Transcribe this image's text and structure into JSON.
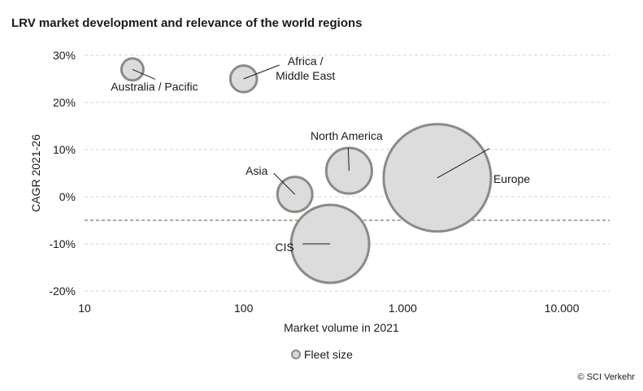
{
  "chart_data": {
    "type": "scatter",
    "title": "LRV market development and relevance of the world regions",
    "xlabel": "Market volume in 2021",
    "ylabel": "CAGR 2021-26",
    "xscale": "log",
    "xlim": [
      10,
      20000
    ],
    "ylim": [
      -20,
      30
    ],
    "x_ticks": [
      10,
      100,
      1000,
      10000
    ],
    "x_tick_labels": [
      "10",
      "100",
      "1.000",
      "10.000"
    ],
    "y_ticks": [
      30,
      20,
      10,
      0,
      -10,
      -20
    ],
    "y_tick_labels": [
      "30%",
      "20%",
      "10%",
      "0%",
      "-10%",
      "-20%"
    ],
    "grid": "horizontal dashed",
    "reference_line_y": -5,
    "legend": {
      "label": "Fleet size",
      "placement": "bottom-center"
    },
    "bubble_color": "#dcdcdc",
    "bubble_edge": "#8c8a84",
    "series": [
      {
        "label": "Australia / Pacific",
        "x": 20,
        "y": 27,
        "size": 1.5
      },
      {
        "label": "Africa / Middle East",
        "x": 100,
        "y": 25,
        "size": 2.2
      },
      {
        "label": "Asia",
        "x": 210,
        "y": 0.5,
        "size": 3.8
      },
      {
        "label": "North America",
        "x": 460,
        "y": 5.5,
        "size": 6.5
      },
      {
        "label": "CIS",
        "x": 350,
        "y": -10,
        "size": 19
      },
      {
        "label": "Europe",
        "x": 1650,
        "y": 4,
        "size": 36
      }
    ]
  },
  "copyright": "© SCI Verkehr"
}
